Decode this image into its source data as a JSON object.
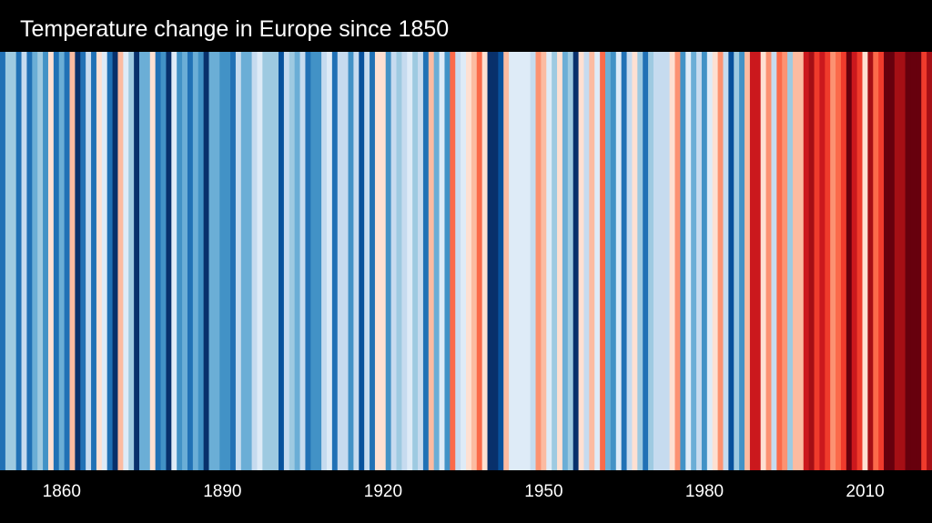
{
  "chart_data": {
    "type": "heatmap",
    "title": "Temperature change in Europe since 1850",
    "start_year": 1850,
    "palette": {
      "-8": "#08306b",
      "-7": "#08519c",
      "-6": "#2171b5",
      "-5": "#4292c6",
      "-4": "#6baed6",
      "-3": "#9ecae1",
      "-2": "#c6dbef",
      "-1": "#deebf7",
      "1": "#fee0d2",
      "2": "#fcbba1",
      "3": "#fc9272",
      "4": "#fb6a4a",
      "5": "#ef3b2c",
      "6": "#cb181d",
      "7": "#a50f15",
      "8": "#67000d"
    },
    "values": [
      -6,
      -3,
      -3,
      -6,
      -2,
      -6,
      -4,
      -3,
      -5,
      1,
      -6,
      -4,
      -6,
      2,
      -8,
      -6,
      -2,
      -6,
      1,
      -1,
      -6,
      -8,
      2,
      -1,
      -3,
      -8,
      -4,
      -4,
      1,
      -6,
      -5,
      -8,
      -1,
      -5,
      -4,
      -6,
      -4,
      -5,
      -8,
      -4,
      -4,
      -5,
      -5,
      -6,
      -2,
      -4,
      -4,
      -2,
      -1,
      -3,
      -3,
      -3,
      -7,
      -2,
      -3,
      -4,
      -2,
      -6,
      -5,
      -5,
      -2,
      -1,
      -6,
      -2,
      -2,
      -5,
      -2,
      -7,
      -2,
      -6,
      1,
      1,
      -5,
      -2,
      -3,
      -2,
      -1,
      -3,
      -2,
      -6,
      2,
      -4,
      -1,
      -5,
      4,
      -2,
      -1,
      1,
      2,
      4,
      1,
      -8,
      -8,
      -7,
      2,
      -1,
      -1,
      -1,
      -1,
      -2,
      3,
      2,
      -1,
      -3,
      1,
      -4,
      -3,
      -8,
      1,
      -2,
      2,
      -1,
      4,
      -4,
      -5,
      -1,
      -6,
      -2,
      1,
      -3,
      -6,
      -3,
      -2,
      -2,
      -2,
      1,
      3,
      -5,
      -1,
      -4,
      -2,
      -5,
      -1,
      1,
      3,
      -2,
      -7,
      -3,
      -5,
      2,
      6,
      6,
      1,
      3,
      -2,
      4,
      3,
      -3,
      2,
      2,
      6,
      7,
      5,
      6,
      5,
      3,
      4,
      5,
      8,
      6,
      5,
      1,
      7,
      4,
      5,
      8,
      8,
      7,
      7,
      8,
      8,
      8,
      5,
      7
    ],
    "x_tick_labels": [
      "1860",
      "1890",
      "1920",
      "1950",
      "1980",
      "2010"
    ],
    "grid": false,
    "legend": "none"
  }
}
